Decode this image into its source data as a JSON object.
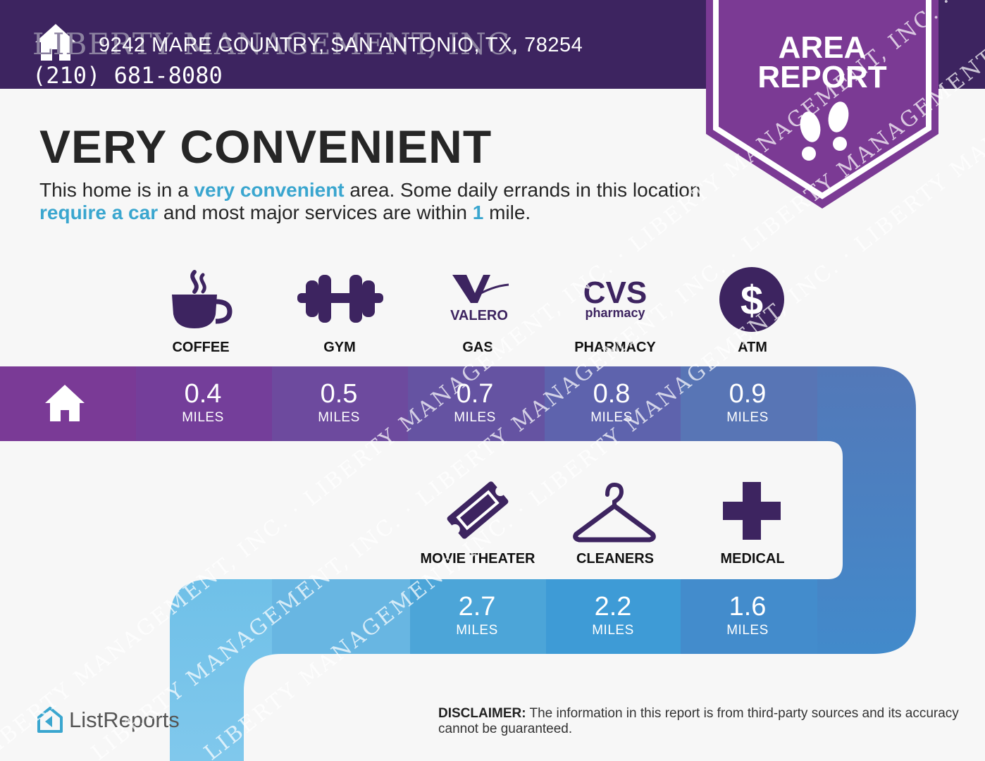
{
  "header": {
    "company": "LIBERTY MANAGEMENT, INC.",
    "address": "9242 MARE COUNTRY, SAN ANTONIO, TX, 78254",
    "phone": "(210) 681-8080",
    "bg_color": "#3d2460",
    "icon": "house-icon"
  },
  "badge": {
    "line1": "AREA",
    "line2": "REPORT",
    "color": "#7b3a94",
    "icon": "footprints-icon"
  },
  "title": "VERY CONVENIENT",
  "description": {
    "part1": "This home is in a ",
    "highlight1": "very convenient",
    "part2": " area. Some daily errands in this location ",
    "highlight2": "require a car",
    "part3": " and most major services are within ",
    "highlight3": "1",
    "part4": " mile."
  },
  "services_top": [
    {
      "label": "COFFEE",
      "value": "0.4",
      "unit": "MILES",
      "icon": "coffee-cup-icon",
      "seg_color": "#743e9a"
    },
    {
      "label": "GYM",
      "value": "0.5",
      "unit": "MILES",
      "icon": "dumbbell-icon",
      "seg_color": "#6d4a9e"
    },
    {
      "label": "GAS",
      "value": "0.7",
      "unit": "MILES",
      "icon": "valero-logo-icon",
      "brand_text": "VALERO",
      "seg_color": "#6553a2"
    },
    {
      "label": "PHARMACY",
      "value": "0.8",
      "unit": "MILES",
      "icon": "cvs-pharmacy-logo-icon",
      "brand_text": "CVS",
      "brand_sub": "pharmacy",
      "seg_color": "#5e63ad"
    },
    {
      "label": "ATM",
      "value": "0.9",
      "unit": "MILES",
      "icon": "dollar-circle-icon",
      "seg_color": "#5875b5"
    }
  ],
  "services_bottom": [
    {
      "label": "MOVIE THEATER",
      "value": "2.7",
      "unit": "MILES",
      "icon": "ticket-icon",
      "seg_color": "#4ca5d8"
    },
    {
      "label": "CLEANERS",
      "value": "2.2",
      "unit": "MILES",
      "icon": "hanger-icon",
      "seg_color": "#3e9bd6"
    },
    {
      "label": "MEDICAL",
      "value": "1.6",
      "unit": "MILES",
      "icon": "medical-cross-icon",
      "seg_color": "#438ccc"
    }
  ],
  "colors": {
    "home_segment": "#7a3a96",
    "icon_purple": "#3d2460",
    "highlight_blue": "#3aa6cf"
  },
  "footer": {
    "logo_text": "ListReports",
    "disclaimer_label": "DISCLAIMER:",
    "disclaimer_text": "The information in this report is from third-party sources and its accuracy cannot be guaranteed."
  },
  "watermark_text": "LIBERTY MANAGEMENT, INC. · LIBERTY MANAGEMENT, INC. · LIBERTY MANAGEMENT, INC. ·"
}
